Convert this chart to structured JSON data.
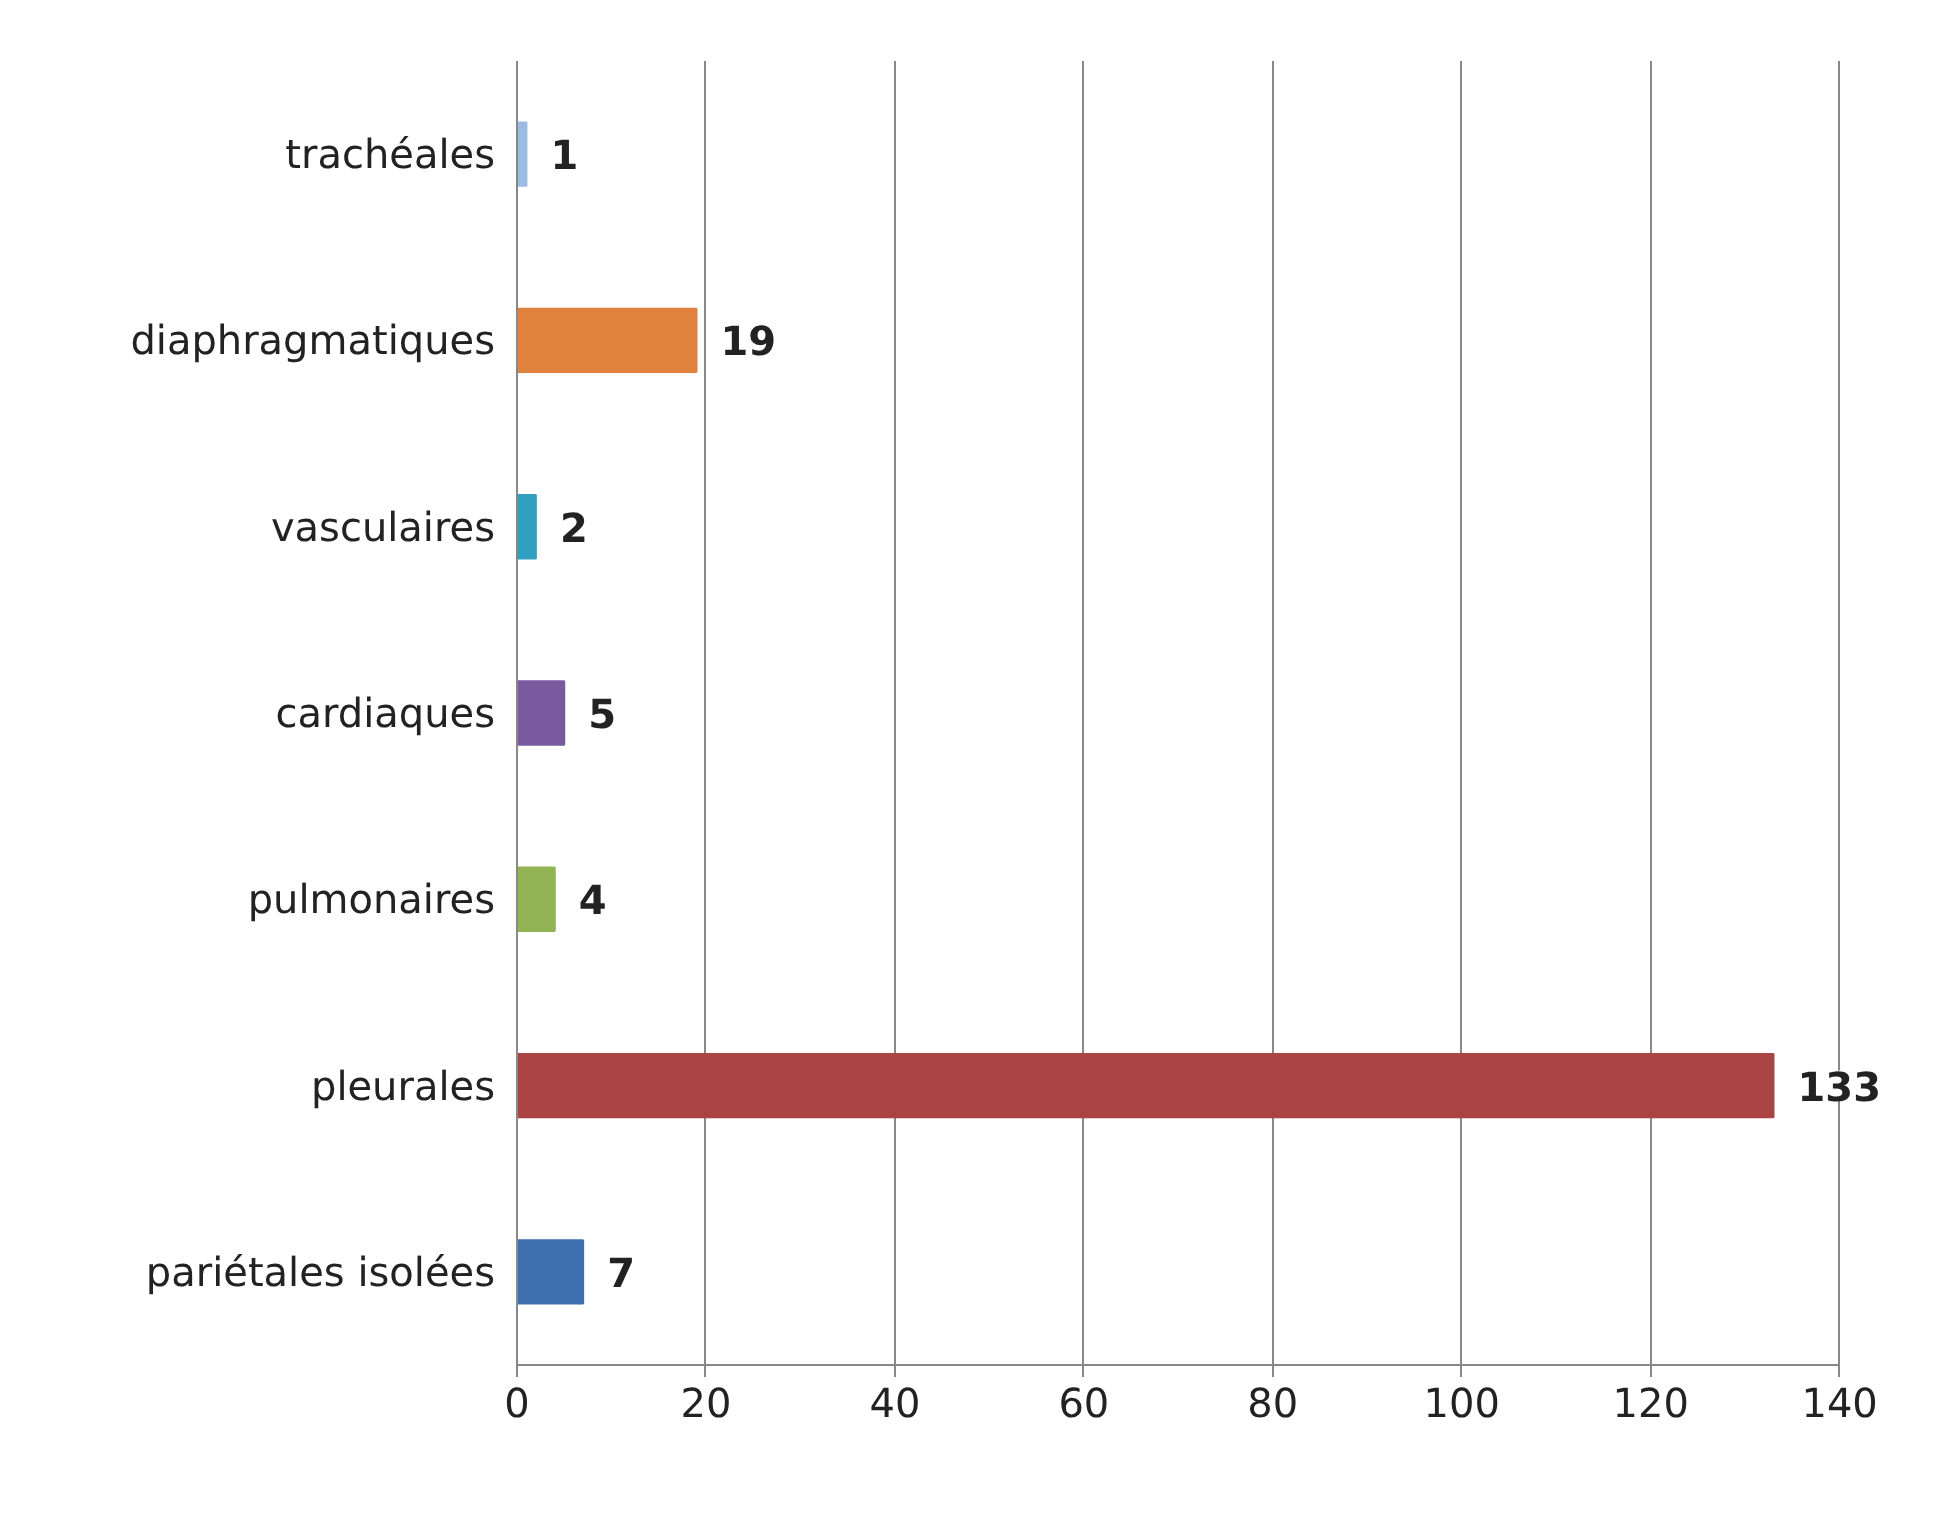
{
  "chart_data": {
    "type": "bar",
    "orientation": "horizontal",
    "categories": [
      "trachéales",
      "diaphragmatiques",
      "vasculaires",
      "cardiaques",
      "pulmonaires",
      "pleurales",
      "pariétales isolées"
    ],
    "values": [
      1,
      19,
      2,
      5,
      4,
      133,
      7
    ],
    "colors": [
      "#9bbbe0",
      "#e0823d",
      "#31a0c0",
      "#7a5a9e",
      "#93b454",
      "#a94443",
      "#3f6fae"
    ],
    "xlim": [
      0,
      140
    ],
    "xticks": [
      0,
      20,
      40,
      60,
      80,
      100,
      120,
      140
    ],
    "grid": "x",
    "data_labels": true
  }
}
